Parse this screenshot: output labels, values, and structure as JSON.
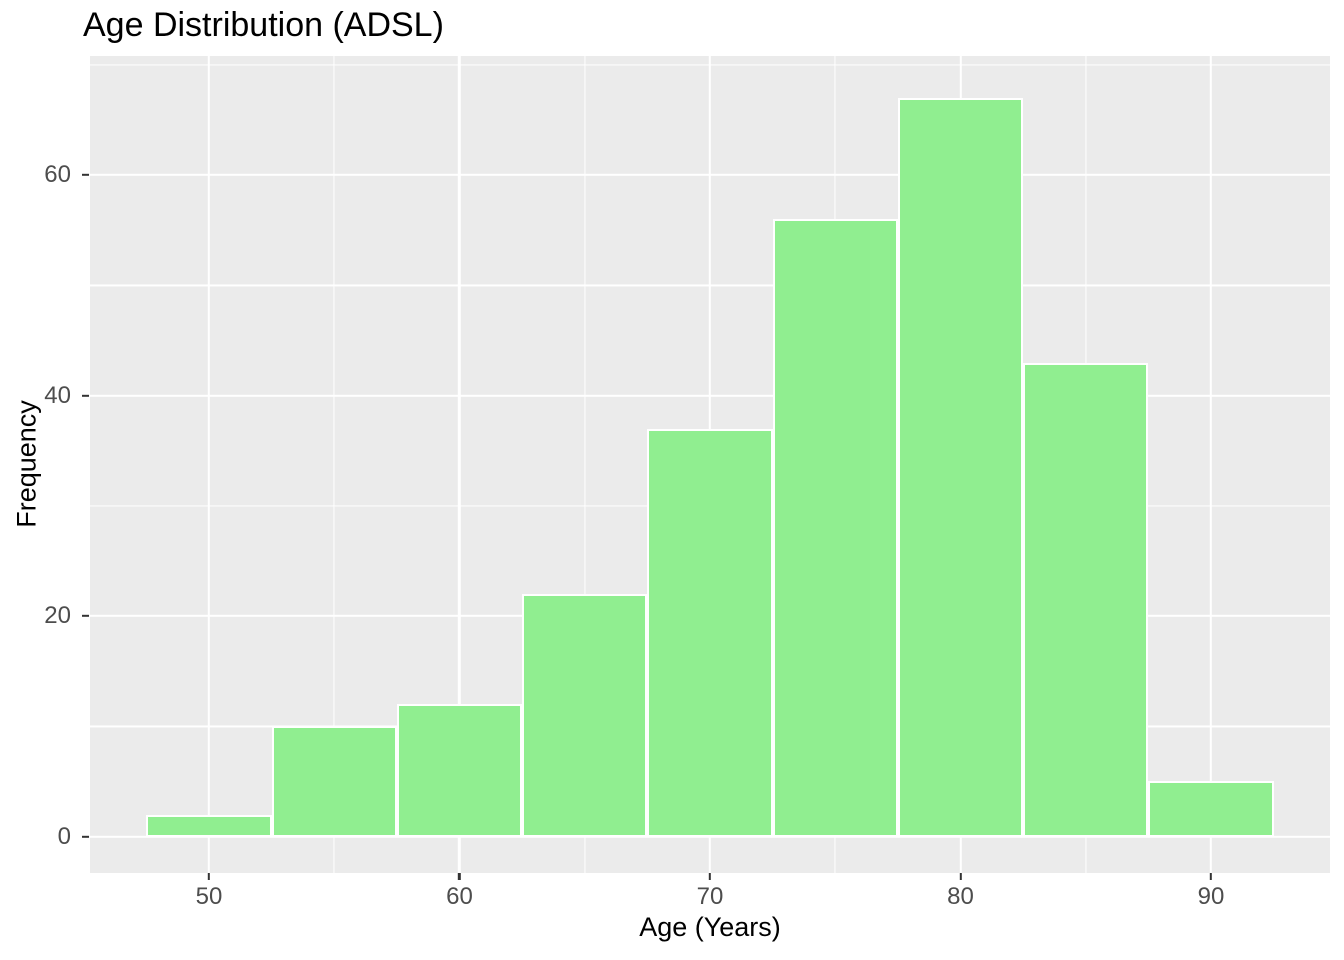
{
  "chart_data": {
    "type": "bar",
    "subtype": "histogram",
    "title": "Age Distribution (ADSL)",
    "xlabel": "Age (Years)",
    "ylabel": "Frequency",
    "bin_edges": [
      47.5,
      52.5,
      57.5,
      62.5,
      67.5,
      72.5,
      77.5,
      82.5,
      87.5,
      92.5
    ],
    "bin_centers": [
      50,
      55,
      60,
      65,
      70,
      75,
      80,
      85,
      90
    ],
    "values": [
      2,
      10,
      12,
      22,
      37,
      56,
      67,
      43,
      5
    ],
    "xlim": [
      45.25,
      94.75
    ],
    "ylim": [
      -3.3,
      70.8
    ],
    "x_major_ticks": [
      50,
      60,
      70,
      80,
      90
    ],
    "x_minor_ticks": [
      55,
      65,
      75,
      85
    ],
    "y_major_ticks": [
      0,
      20,
      40,
      60
    ],
    "y_minor_ticks": [
      10,
      30,
      50,
      70
    ],
    "grid": "on",
    "legend": "none",
    "colors": {
      "bar_fill": "#90EE90",
      "bar_border": "#FFFFFF",
      "panel_background": "#EBEBEB",
      "gridline": "#FFFFFF",
      "tick_mark": "#333333",
      "tick_label_text": "#4D4D4D",
      "title_text": "#000000",
      "axis_title_text": "#000000",
      "figure_background": "#FFFFFF"
    }
  }
}
